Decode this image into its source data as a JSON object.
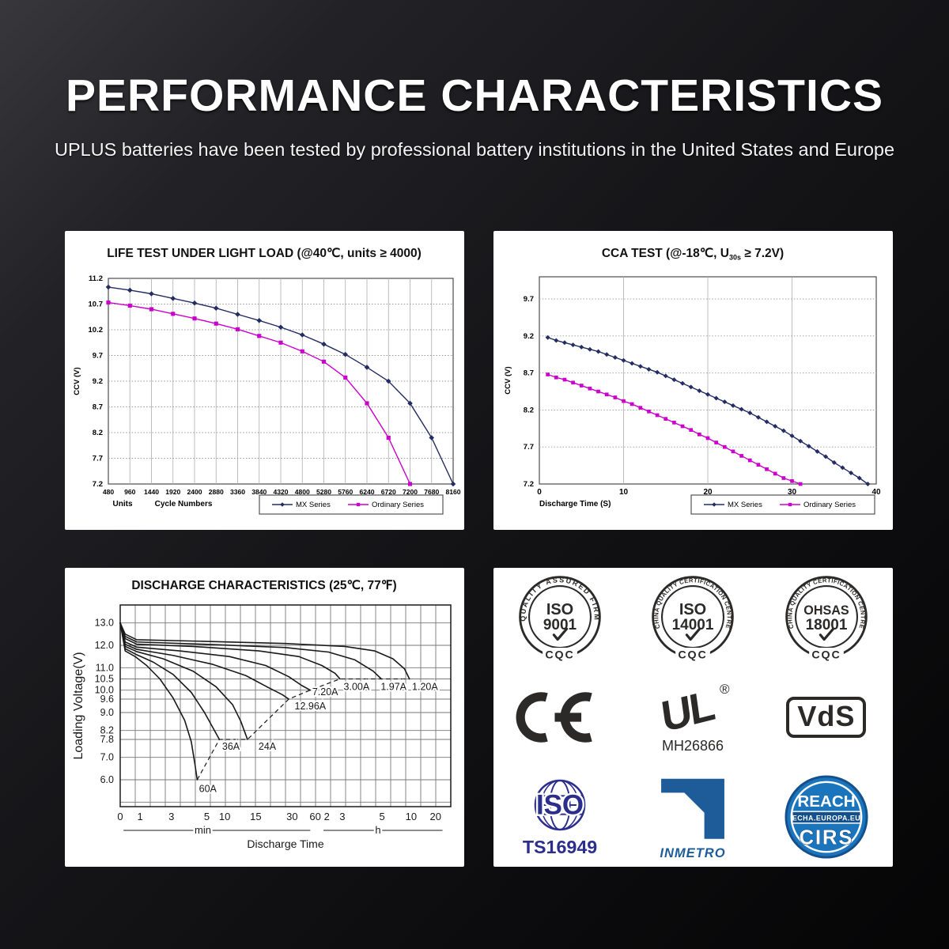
{
  "header": {
    "title": "PERFORMANCE CHARACTERISTICS",
    "subtitle": "UPLUS batteries have been tested by professional battery institutions in the United States and Europe"
  },
  "colors": {
    "mx_series": "#232D64",
    "ordinary_series": "#CC00CC",
    "chart_grid": "#ADADAD",
    "chart_dotted": "#999999",
    "chart_border": "#4D4D4D",
    "discharge_ink": "#1A1A1A",
    "discharge_grid": "#777777",
    "cert_ink": "#2B2A29",
    "cert_indigo": "#2B2E8C",
    "inmetro_blue": "#1D5C99",
    "reach_blue": "#1B75BC",
    "reach_dark_blue": "#14508C",
    "panel_bg": "#FFFFFF"
  },
  "chart_data": [
    {
      "id": "life-test",
      "type": "line",
      "title": "LIFE TEST UNDER LIGHT LOAD (@40℃, units ≥ 4000)",
      "xlabel": "Cycle Numbers",
      "x_unit_label": "Units",
      "ylabel": "CCV (V)",
      "xlim": [
        480,
        8160
      ],
      "xticks": [
        "480",
        "960",
        "1440",
        "1920",
        "2400",
        "2880",
        "3360",
        "3840",
        "4320",
        "4800",
        "5280",
        "5760",
        "6240",
        "6720",
        "7200",
        "7680",
        "8160"
      ],
      "ylim": [
        7.2,
        11.2
      ],
      "yticks": [
        "11.2",
        "10.7",
        "10.2",
        "9.7",
        "9.2",
        "8.7",
        "8.2",
        "7.7",
        "7.2"
      ],
      "grid": true,
      "legend_position": "bottom-right",
      "series": [
        {
          "name": "MX Series",
          "marker": "diamond",
          "color_key": "mx_series",
          "x": [
            480,
            960,
            1440,
            1920,
            2400,
            2880,
            3360,
            3840,
            4320,
            4800,
            5280,
            5760,
            6240,
            6720,
            7200,
            7680,
            8160
          ],
          "values": [
            11.03,
            10.97,
            10.9,
            10.81,
            10.72,
            10.62,
            10.5,
            10.38,
            10.25,
            10.1,
            9.92,
            9.72,
            9.47,
            9.2,
            8.77,
            8.1,
            7.2
          ]
        },
        {
          "name": "Ordinary Series",
          "marker": "square",
          "color_key": "ordinary_series",
          "x": [
            480,
            960,
            1440,
            1920,
            2400,
            2880,
            3360,
            3840,
            4320,
            4800,
            5280,
            5760,
            6240,
            6720,
            7200
          ],
          "values": [
            10.73,
            10.67,
            10.6,
            10.51,
            10.42,
            10.32,
            10.21,
            10.08,
            9.95,
            9.78,
            9.58,
            9.27,
            8.77,
            8.1,
            7.2
          ]
        }
      ]
    },
    {
      "id": "cca-test",
      "type": "line",
      "title": "CCA TEST (@-18℃, U30s ≥ 7.2V)",
      "title_parts": [
        {
          "t": "CCA TEST (@-18℃, U"
        },
        {
          "t": "30s",
          "sub": true
        },
        {
          "t": " ≥ 7.2V)"
        }
      ],
      "xlabel": "Discharge Time (S)",
      "ylabel": "CCV (V)",
      "xlim": [
        0,
        40
      ],
      "xticks": [
        "0",
        "10",
        "20",
        "30",
        "40"
      ],
      "ylim": [
        7.2,
        10.0
      ],
      "yticks": [
        "9.7",
        "9.2",
        "8.7",
        "8.2",
        "7.7",
        "7.2"
      ],
      "grid": true,
      "legend_position": "bottom-right",
      "series": [
        {
          "name": "MX Series",
          "marker": "diamond",
          "color_key": "mx_series",
          "x": [
            1,
            2,
            3,
            4,
            5,
            6,
            7,
            8,
            9,
            10,
            11,
            12,
            13,
            14,
            15,
            16,
            17,
            18,
            19,
            20,
            21,
            22,
            23,
            24,
            25,
            26,
            27,
            28,
            29,
            30,
            31,
            32,
            33,
            34,
            35,
            36,
            37,
            38,
            39
          ],
          "values": [
            9.18,
            9.14,
            9.11,
            9.08,
            9.05,
            9.02,
            8.99,
            8.95,
            8.91,
            8.87,
            8.83,
            8.79,
            8.75,
            8.71,
            8.66,
            8.61,
            8.56,
            8.51,
            8.46,
            8.41,
            8.36,
            8.31,
            8.26,
            8.21,
            8.16,
            8.1,
            8.04,
            7.98,
            7.92,
            7.85,
            7.78,
            7.71,
            7.64,
            7.57,
            7.49,
            7.42,
            7.35,
            7.28,
            7.2
          ]
        },
        {
          "name": "Ordinary Series",
          "marker": "square",
          "color_key": "ordinary_series",
          "x": [
            1,
            2,
            3,
            4,
            5,
            6,
            7,
            8,
            9,
            10,
            11,
            12,
            13,
            14,
            15,
            16,
            17,
            18,
            19,
            20,
            21,
            22,
            23,
            24,
            25,
            26,
            27,
            28,
            29,
            30,
            31
          ],
          "values": [
            8.68,
            8.64,
            8.61,
            8.57,
            8.53,
            8.49,
            8.45,
            8.41,
            8.37,
            8.32,
            8.28,
            8.23,
            8.18,
            8.13,
            8.08,
            8.03,
            7.98,
            7.93,
            7.87,
            7.82,
            7.76,
            7.7,
            7.64,
            7.58,
            7.52,
            7.46,
            7.4,
            7.34,
            7.28,
            7.24,
            7.2
          ]
        }
      ]
    },
    {
      "id": "discharge-characteristics",
      "type": "line",
      "title": "DISCHARGE CHARACTERISTICS (25℃, 77℉)",
      "xlabel": "Discharge Time",
      "ylabel": "Loading Voltage(V)",
      "ylim": [
        4.8,
        13.8
      ],
      "yticks": [
        "13.0",
        "12.0",
        "11.0",
        "10.5",
        "10.0",
        "9.6",
        "9.0",
        "8.2",
        "7.8",
        "7.0",
        "6.0"
      ],
      "yticks_unlabeled": [
        5.0
      ],
      "x_grid_divisions": 22,
      "xticks": [
        {
          "label": "0",
          "f": 0.0
        },
        {
          "label": "1",
          "f": 0.06
        },
        {
          "label": "3",
          "f": 0.155
        },
        {
          "label": "5",
          "f": 0.262
        },
        {
          "label": "10",
          "f": 0.316
        },
        {
          "label": "15",
          "f": 0.41
        },
        {
          "label": "30",
          "f": 0.52
        },
        {
          "label": "60",
          "f": 0.59
        },
        {
          "label": "2",
          "f": 0.625
        },
        {
          "label": "3",
          "f": 0.672
        },
        {
          "label": "5",
          "f": 0.792
        },
        {
          "label": "10",
          "f": 0.88
        },
        {
          "label": "20",
          "f": 0.954
        }
      ],
      "x_units": [
        {
          "label": "min",
          "from": 0.01,
          "to": 0.575,
          "label_f": 0.25
        },
        {
          "label": "h",
          "from": 0.615,
          "to": 0.975,
          "label_f": 0.78
        }
      ],
      "curves": [
        {
          "label": "1.20A",
          "label_pos": [
            0.922,
            10.15
          ],
          "points": [
            [
              0,
              13.0
            ],
            [
              0.015,
              12.5
            ],
            [
              0.05,
              12.25
            ],
            [
              0.25,
              12.18
            ],
            [
              0.5,
              12.08
            ],
            [
              0.68,
              11.95
            ],
            [
              0.77,
              11.75
            ],
            [
              0.825,
              11.4
            ],
            [
              0.86,
              10.95
            ],
            [
              0.875,
              10.5
            ]
          ]
        },
        {
          "label": "1.97A",
          "label_pos": [
            0.827,
            10.15
          ],
          "points": [
            [
              0,
              13.0
            ],
            [
              0.015,
              12.4
            ],
            [
              0.05,
              12.15
            ],
            [
              0.25,
              12.05
            ],
            [
              0.5,
              11.9
            ],
            [
              0.63,
              11.7
            ],
            [
              0.71,
              11.35
            ],
            [
              0.765,
              10.85
            ],
            [
              0.79,
              10.5
            ]
          ]
        },
        {
          "label": "3.00A",
          "label_pos": [
            0.715,
            10.15
          ],
          "points": [
            [
              0,
              13.0
            ],
            [
              0.015,
              12.3
            ],
            [
              0.05,
              12.05
            ],
            [
              0.22,
              11.95
            ],
            [
              0.42,
              11.75
            ],
            [
              0.54,
              11.5
            ],
            [
              0.61,
              11.1
            ],
            [
              0.65,
              10.75
            ],
            [
              0.665,
              10.5
            ]
          ]
        },
        {
          "label": "7.20A",
          "label_pos": [
            0.62,
            9.92
          ],
          "points": [
            [
              0,
              13.0
            ],
            [
              0.015,
              12.15
            ],
            [
              0.05,
              11.92
            ],
            [
              0.18,
              11.75
            ],
            [
              0.33,
              11.5
            ],
            [
              0.44,
              11.1
            ],
            [
              0.51,
              10.6
            ],
            [
              0.55,
              10.2
            ],
            [
              0.575,
              10.0
            ]
          ]
        },
        {
          "label": "12.96A",
          "label_pos": [
            0.575,
            9.28
          ],
          "points": [
            [
              0,
              13.0
            ],
            [
              0.015,
              12.05
            ],
            [
              0.05,
              11.82
            ],
            [
              0.16,
              11.55
            ],
            [
              0.28,
              11.15
            ],
            [
              0.38,
              10.65
            ],
            [
              0.45,
              10.1
            ],
            [
              0.49,
              9.8
            ],
            [
              0.51,
              9.6
            ]
          ]
        },
        {
          "label": "24A",
          "label_pos": [
            0.445,
            7.48
          ],
          "points": [
            [
              0,
              13.0
            ],
            [
              0.015,
              11.95
            ],
            [
              0.05,
              11.72
            ],
            [
              0.13,
              11.4
            ],
            [
              0.22,
              10.85
            ],
            [
              0.29,
              10.15
            ],
            [
              0.34,
              9.35
            ],
            [
              0.365,
              8.6
            ],
            [
              0.38,
              8.0
            ],
            [
              0.385,
              7.8
            ]
          ]
        },
        {
          "label": "36A",
          "label_pos": [
            0.335,
            7.48
          ],
          "points": [
            [
              0,
              13.0
            ],
            [
              0.015,
              11.85
            ],
            [
              0.05,
              11.58
            ],
            [
              0.1,
              11.25
            ],
            [
              0.16,
              10.7
            ],
            [
              0.215,
              9.9
            ],
            [
              0.255,
              9.0
            ],
            [
              0.285,
              8.2
            ],
            [
              0.3,
              7.8
            ]
          ]
        },
        {
          "label": "60A",
          "label_pos": [
            0.265,
            5.6
          ],
          "points": [
            [
              0,
              13.0
            ],
            [
              0.015,
              11.75
            ],
            [
              0.045,
              11.5
            ],
            [
              0.08,
              11.1
            ],
            [
              0.12,
              10.5
            ],
            [
              0.16,
              9.65
            ],
            [
              0.195,
              8.65
            ],
            [
              0.215,
              7.7
            ],
            [
              0.227,
              6.6
            ],
            [
              0.233,
              6.0
            ]
          ]
        }
      ],
      "endpoint_dashed_line": [
        [
          0.233,
          6.0
        ],
        [
          0.3,
          7.8
        ],
        [
          0.385,
          7.8
        ],
        [
          0.51,
          9.6
        ],
        [
          0.575,
          10.0
        ],
        [
          0.665,
          10.5
        ],
        [
          0.79,
          10.5
        ],
        [
          0.875,
          10.5
        ]
      ]
    }
  ],
  "certifications": {
    "rows": [
      [
        {
          "kind": "cqc",
          "name": "iso-9001-logo",
          "ring": "QUALITY ASSURED FIRM",
          "line1": "ISO",
          "line2": "9001",
          "bottom": "CQC"
        },
        {
          "kind": "cqc",
          "name": "iso-14001-logo",
          "ring": "CHINA QUALITY CERTIFICATION CENTRE",
          "line1": "ISO",
          "line2": "14001",
          "bottom": "CQC"
        },
        {
          "kind": "cqc",
          "name": "ohsas-18001-logo",
          "ring": "CHINA QUALITY CERTIFICATION CENTRE",
          "line1": "OHSAS",
          "line2": "18001",
          "bottom": "CQC"
        }
      ],
      [
        {
          "kind": "ce",
          "name": "ce-mark-logo",
          "label": "CE"
        },
        {
          "kind": "ul",
          "name": "ul-logo",
          "label": "UL",
          "reg": "®",
          "code": "MH26866"
        },
        {
          "kind": "vds",
          "name": "vds-logo",
          "label": "VdS"
        }
      ],
      [
        {
          "kind": "iso-globe",
          "name": "iso-ts16949-logo",
          "label": "ISO",
          "code": "TS16949"
        },
        {
          "kind": "inmetro",
          "name": "inmetro-logo",
          "label": "INMETRO"
        },
        {
          "kind": "reach",
          "name": "reach-cirs-logo",
          "top": "REACH",
          "mid": "ECHA.EUROPA.EU",
          "bottom": "CIRS"
        }
      ]
    ]
  }
}
